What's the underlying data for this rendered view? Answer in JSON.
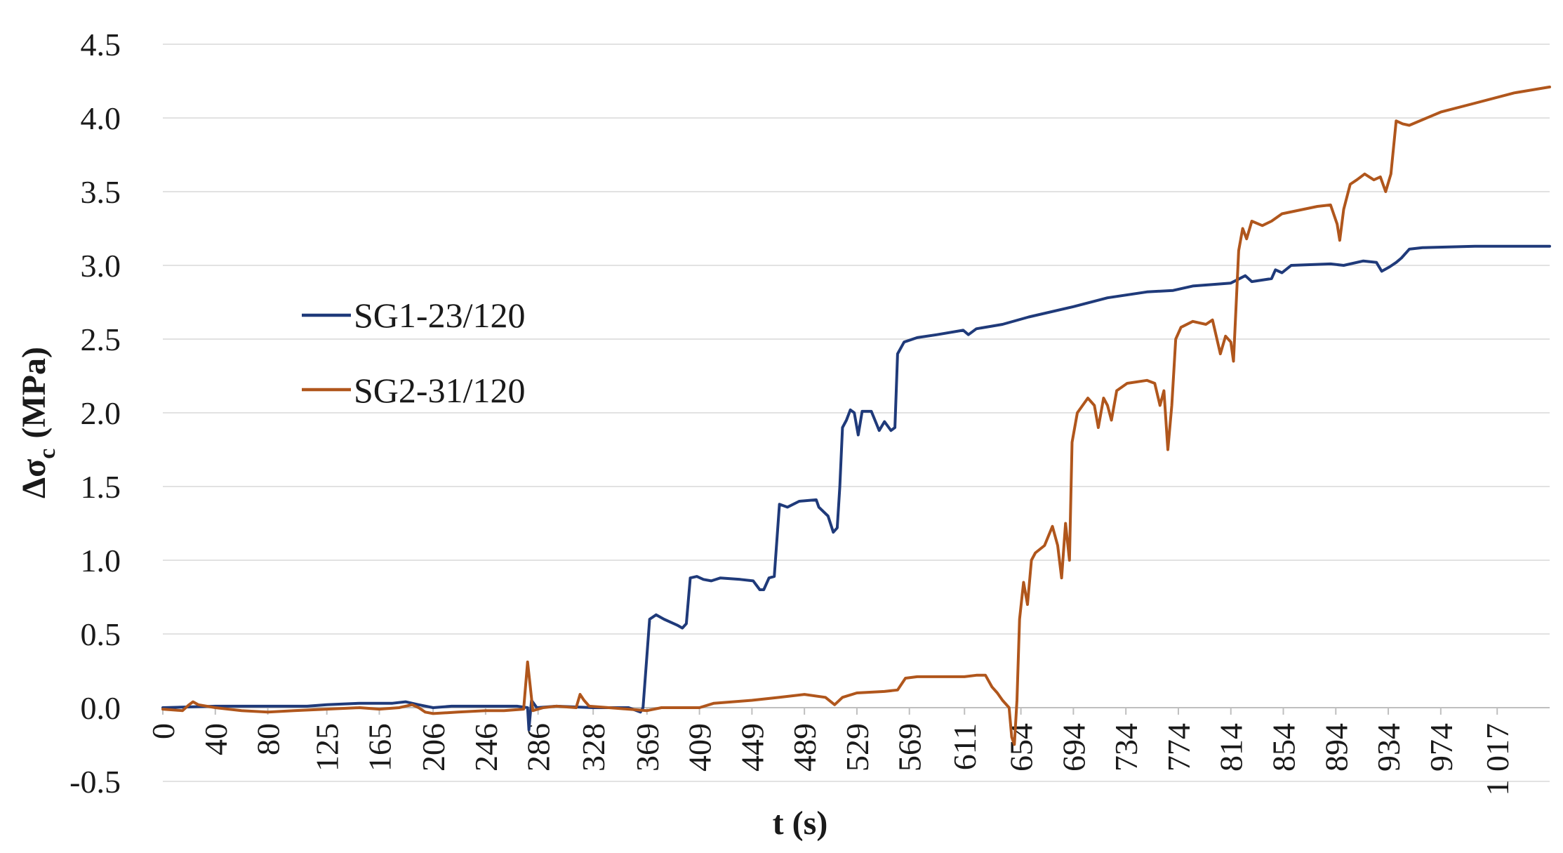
{
  "chart_data": {
    "type": "line",
    "title": "",
    "xlabel": "t (s)",
    "ylabel_main": "Δσ",
    "ylabel_sub": "c",
    "ylabel_unit": "(MPa)",
    "ylim": [
      -0.5,
      4.5
    ],
    "yticks": [
      -0.5,
      0.0,
      0.5,
      1.0,
      1.5,
      2.0,
      2.5,
      3.0,
      3.5,
      4.0,
      4.5
    ],
    "ytick_labels": [
      "-0.5",
      "0.0",
      "0.5",
      "1.0",
      "1.5",
      "2.0",
      "2.5",
      "3.0",
      "3.5",
      "4.0",
      "4.5"
    ],
    "xlim": [
      0,
      1057
    ],
    "xticks": [
      0,
      40,
      80,
      125,
      165,
      206,
      246,
      286,
      328,
      369,
      409,
      449,
      489,
      529,
      569,
      611,
      654,
      694,
      734,
      774,
      814,
      854,
      894,
      934,
      974,
      1017
    ],
    "xtick_labels": [
      "0",
      "40",
      "80",
      "125",
      "165",
      "206",
      "246",
      "286",
      "328",
      "369",
      "409",
      "449",
      "489",
      "529",
      "569",
      "611",
      "654",
      "694",
      "734",
      "774",
      "814",
      "854",
      "894",
      "934",
      "974",
      "1 017"
    ],
    "legend_position": "left",
    "series": [
      {
        "name": "SG1-23/120",
        "color": "#1f3a7a",
        "points": [
          [
            0,
            0.0
          ],
          [
            40,
            0.01
          ],
          [
            80,
            0.01
          ],
          [
            110,
            0.01
          ],
          [
            125,
            0.02
          ],
          [
            150,
            0.03
          ],
          [
            175,
            0.03
          ],
          [
            185,
            0.04
          ],
          [
            195,
            0.02
          ],
          [
            206,
            0.0
          ],
          [
            220,
            0.01
          ],
          [
            246,
            0.01
          ],
          [
            270,
            0.01
          ],
          [
            278,
            0.0
          ],
          [
            279,
            -0.15
          ],
          [
            281,
            0.05
          ],
          [
            285,
            0.0
          ],
          [
            300,
            0.01
          ],
          [
            328,
            0.0
          ],
          [
            355,
            0.0
          ],
          [
            364,
            -0.03
          ],
          [
            366,
            0.0
          ],
          [
            371,
            0.6
          ],
          [
            376,
            0.63
          ],
          [
            382,
            0.6
          ],
          [
            392,
            0.56
          ],
          [
            396,
            0.54
          ],
          [
            399,
            0.57
          ],
          [
            402,
            0.88
          ],
          [
            407,
            0.89
          ],
          [
            412,
            0.87
          ],
          [
            418,
            0.86
          ],
          [
            425,
            0.88
          ],
          [
            440,
            0.87
          ],
          [
            450,
            0.86
          ],
          [
            455,
            0.8
          ],
          [
            458,
            0.8
          ],
          [
            462,
            0.88
          ],
          [
            466,
            0.89
          ],
          [
            470,
            1.38
          ],
          [
            476,
            1.36
          ],
          [
            485,
            1.4
          ],
          [
            498,
            1.41
          ],
          [
            500,
            1.36
          ],
          [
            507,
            1.3
          ],
          [
            511,
            1.19
          ],
          [
            514,
            1.22
          ],
          [
            516,
            1.5
          ],
          [
            518,
            1.9
          ],
          [
            521,
            1.95
          ],
          [
            524,
            2.02
          ],
          [
            527,
            2.0
          ],
          [
            530,
            1.85
          ],
          [
            533,
            2.01
          ],
          [
            540,
            2.01
          ],
          [
            546,
            1.88
          ],
          [
            550,
            1.94
          ],
          [
            555,
            1.88
          ],
          [
            558,
            1.9
          ],
          [
            560,
            2.4
          ],
          [
            565,
            2.48
          ],
          [
            575,
            2.51
          ],
          [
            590,
            2.53
          ],
          [
            610,
            2.56
          ],
          [
            614,
            2.53
          ],
          [
            620,
            2.57
          ],
          [
            640,
            2.6
          ],
          [
            660,
            2.65
          ],
          [
            694,
            2.72
          ],
          [
            720,
            2.78
          ],
          [
            750,
            2.82
          ],
          [
            770,
            2.83
          ],
          [
            785,
            2.86
          ],
          [
            800,
            2.87
          ],
          [
            814,
            2.88
          ],
          [
            825,
            2.93
          ],
          [
            830,
            2.89
          ],
          [
            845,
            2.91
          ],
          [
            848,
            2.97
          ],
          [
            853,
            2.95
          ],
          [
            860,
            3.0
          ],
          [
            890,
            3.01
          ],
          [
            900,
            3.0
          ],
          [
            915,
            3.03
          ],
          [
            925,
            3.02
          ],
          [
            929,
            2.96
          ],
          [
            935,
            2.99
          ],
          [
            940,
            3.02
          ],
          [
            944,
            3.05
          ],
          [
            950,
            3.11
          ],
          [
            960,
            3.12
          ],
          [
            1000,
            3.13
          ],
          [
            1057,
            3.13
          ]
        ]
      },
      {
        "name": "SG2-31/120",
        "color": "#b0561c",
        "points": [
          [
            0,
            -0.01
          ],
          [
            15,
            -0.02
          ],
          [
            20,
            0.02
          ],
          [
            23,
            0.04
          ],
          [
            27,
            0.02
          ],
          [
            40,
            0.0
          ],
          [
            60,
            -0.02
          ],
          [
            80,
            -0.03
          ],
          [
            100,
            -0.02
          ],
          [
            125,
            -0.01
          ],
          [
            150,
            0.0
          ],
          [
            165,
            -0.01
          ],
          [
            180,
            0.0
          ],
          [
            190,
            0.02
          ],
          [
            195,
            0.0
          ],
          [
            200,
            -0.03
          ],
          [
            206,
            -0.04
          ],
          [
            225,
            -0.03
          ],
          [
            246,
            -0.02
          ],
          [
            260,
            -0.02
          ],
          [
            275,
            -0.01
          ],
          [
            278,
            0.31
          ],
          [
            280,
            0.15
          ],
          [
            282,
            -0.02
          ],
          [
            290,
            0.0
          ],
          [
            300,
            0.01
          ],
          [
            315,
            0.0
          ],
          [
            318,
            0.09
          ],
          [
            321,
            0.05
          ],
          [
            325,
            0.01
          ],
          [
            340,
            0.0
          ],
          [
            369,
            -0.02
          ],
          [
            380,
            0.0
          ],
          [
            409,
            0.0
          ],
          [
            420,
            0.03
          ],
          [
            449,
            0.05
          ],
          [
            470,
            0.07
          ],
          [
            489,
            0.09
          ],
          [
            505,
            0.07
          ],
          [
            512,
            0.02
          ],
          [
            518,
            0.07
          ],
          [
            529,
            0.1
          ],
          [
            550,
            0.11
          ],
          [
            560,
            0.12
          ],
          [
            566,
            0.2
          ],
          [
            575,
            0.21
          ],
          [
            600,
            0.21
          ],
          [
            611,
            0.21
          ],
          [
            620,
            0.22
          ],
          [
            627,
            0.22
          ],
          [
            632,
            0.14
          ],
          [
            636,
            0.1
          ],
          [
            640,
            0.05
          ],
          [
            645,
            0.0
          ],
          [
            647,
            -0.2
          ],
          [
            649,
            -0.25
          ],
          [
            651,
            0.05
          ],
          [
            653,
            0.6
          ],
          [
            656,
            0.85
          ],
          [
            659,
            0.7
          ],
          [
            662,
            1.0
          ],
          [
            665,
            1.05
          ],
          [
            672,
            1.1
          ],
          [
            678,
            1.23
          ],
          [
            682,
            1.1
          ],
          [
            685,
            0.88
          ],
          [
            688,
            1.25
          ],
          [
            691,
            1.0
          ],
          [
            693,
            1.8
          ],
          [
            697,
            2.0
          ],
          [
            705,
            2.1
          ],
          [
            710,
            2.05
          ],
          [
            713,
            1.9
          ],
          [
            717,
            2.1
          ],
          [
            720,
            2.05
          ],
          [
            723,
            1.95
          ],
          [
            727,
            2.15
          ],
          [
            735,
            2.2
          ],
          [
            750,
            2.22
          ],
          [
            756,
            2.2
          ],
          [
            760,
            2.05
          ],
          [
            763,
            2.15
          ],
          [
            766,
            1.75
          ],
          [
            769,
            2.05
          ],
          [
            772,
            2.5
          ],
          [
            776,
            2.58
          ],
          [
            785,
            2.62
          ],
          [
            795,
            2.6
          ],
          [
            800,
            2.63
          ],
          [
            806,
            2.4
          ],
          [
            810,
            2.52
          ],
          [
            814,
            2.48
          ],
          [
            816,
            2.35
          ],
          [
            820,
            3.1
          ],
          [
            823,
            3.25
          ],
          [
            826,
            3.18
          ],
          [
            830,
            3.3
          ],
          [
            838,
            3.27
          ],
          [
            845,
            3.3
          ],
          [
            853,
            3.35
          ],
          [
            880,
            3.4
          ],
          [
            890,
            3.41
          ],
          [
            895,
            3.28
          ],
          [
            897,
            3.17
          ],
          [
            900,
            3.38
          ],
          [
            905,
            3.55
          ],
          [
            910,
            3.58
          ],
          [
            916,
            3.62
          ],
          [
            923,
            3.58
          ],
          [
            928,
            3.6
          ],
          [
            932,
            3.5
          ],
          [
            936,
            3.62
          ],
          [
            940,
            3.98
          ],
          [
            945,
            3.96
          ],
          [
            950,
            3.95
          ],
          [
            974,
            4.04
          ],
          [
            1000,
            4.1
          ],
          [
            1030,
            4.17
          ],
          [
            1057,
            4.21
          ]
        ]
      }
    ]
  }
}
